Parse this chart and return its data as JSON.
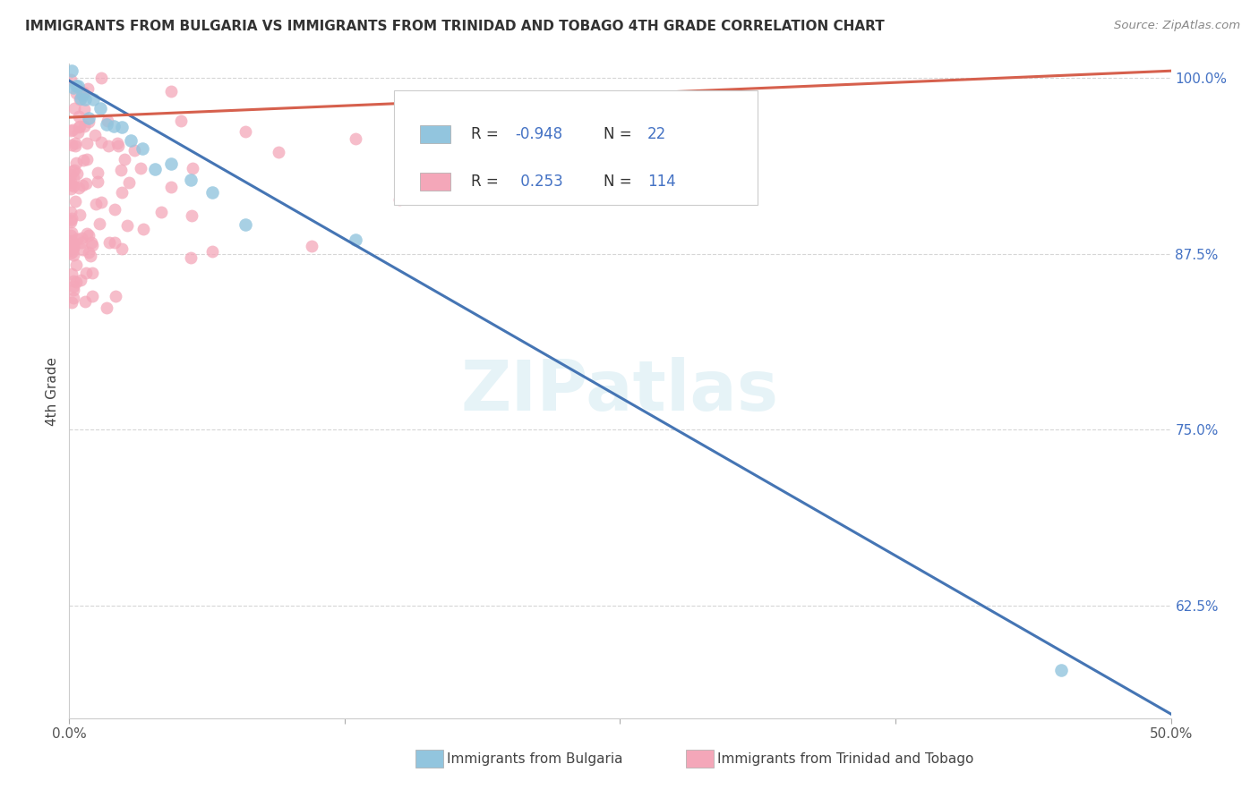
{
  "title": "IMMIGRANTS FROM BULGARIA VS IMMIGRANTS FROM TRINIDAD AND TOBAGO 4TH GRADE CORRELATION CHART",
  "source": "Source: ZipAtlas.com",
  "ylabel": "4th Grade",
  "xlabel": "",
  "xlim": [
    0.0,
    0.5
  ],
  "ylim": [
    0.545,
    1.01
  ],
  "xticks": [
    0.0,
    0.125,
    0.25,
    0.375,
    0.5
  ],
  "xticklabels": [
    "0.0%",
    "",
    "",
    "",
    "50.0%"
  ],
  "yticks": [
    0.625,
    0.75,
    0.875,
    1.0
  ],
  "yticklabels": [
    "62.5%",
    "75.0%",
    "87.5%",
    "100.0%"
  ],
  "bulgaria_color": "#92C5DE",
  "trinidad_color": "#F4A7B9",
  "bulgaria_line_color": "#4575B4",
  "trinidad_line_color": "#D6604D",
  "legend_r_bulgaria": "-0.948",
  "legend_n_bulgaria": "22",
  "legend_r_trinidad": "0.253",
  "legend_n_trinidad": "114",
  "legend_text_color": "#4472C4",
  "watermark": "ZIPatlas",
  "background_color": "#ffffff",
  "grid_color": "#cccccc",
  "bul_line_x0": 0.0,
  "bul_line_y0": 0.998,
  "bul_line_x1": 0.5,
  "bul_line_y1": 0.548,
  "trin_line_x0": 0.0,
  "trin_line_y0": 0.972,
  "trin_line_x1": 0.5,
  "trin_line_y1": 1.005
}
